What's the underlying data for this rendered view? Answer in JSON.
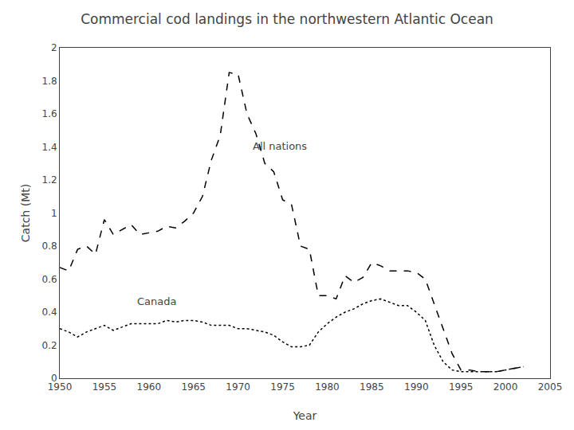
{
  "chart_data": {
    "type": "line",
    "title": "Commercial cod landings in the northwestern Atlantic Ocean",
    "x_label": "Year",
    "y_label": "Catch (Mt)",
    "x": [
      1950,
      1951,
      1952,
      1953,
      1954,
      1955,
      1956,
      1957,
      1958,
      1959,
      1960,
      1961,
      1962,
      1963,
      1964,
      1965,
      1966,
      1967,
      1968,
      1969,
      1970,
      1971,
      1972,
      1973,
      1974,
      1975,
      1976,
      1977,
      1978,
      1979,
      1980,
      1981,
      1982,
      1983,
      1984,
      1985,
      1986,
      1987,
      1988,
      1989,
      1990,
      1991,
      1992,
      1993,
      1994,
      1995,
      1996,
      1997,
      1998,
      1999,
      2000,
      2001,
      2002
    ],
    "series": [
      {
        "color": "#000000",
        "line_style": "dashed",
        "values": [
          0.67,
          0.65,
          0.78,
          0.8,
          0.75,
          0.96,
          0.87,
          0.9,
          0.93,
          0.87,
          0.88,
          0.89,
          0.92,
          0.91,
          0.95,
          1.0,
          1.1,
          1.32,
          1.47,
          1.85,
          1.84,
          1.6,
          1.48,
          1.3,
          1.25,
          1.08,
          1.05,
          0.8,
          0.78,
          0.5,
          0.5,
          0.48,
          0.62,
          0.58,
          0.61,
          0.7,
          0.68,
          0.65,
          0.65,
          0.65,
          0.64,
          0.6,
          0.45,
          0.3,
          0.15,
          0.05,
          0.05,
          0.04,
          0.04,
          0.04,
          0.05,
          0.06,
          0.07
        ]
      },
      {
        "color": "#000000",
        "line_style": "dotted",
        "values": [
          0.3,
          0.28,
          0.25,
          0.28,
          0.3,
          0.32,
          0.29,
          0.31,
          0.33,
          0.33,
          0.33,
          0.33,
          0.35,
          0.34,
          0.35,
          0.35,
          0.34,
          0.32,
          0.32,
          0.32,
          0.3,
          0.3,
          0.29,
          0.28,
          0.26,
          0.22,
          0.19,
          0.19,
          0.2,
          0.28,
          0.33,
          0.37,
          0.4,
          0.42,
          0.45,
          0.47,
          0.48,
          0.46,
          0.44,
          0.44,
          0.4,
          0.35,
          0.2,
          0.1,
          0.05,
          0.04,
          0.04,
          0.04,
          0.04,
          0.04,
          0.05,
          0.06,
          0.07
        ]
      }
    ],
    "annotations": [
      {
        "text": "All nations",
        "x": 1971.5,
        "y": 1.36
      },
      {
        "text": "Canada",
        "x": 1958.5,
        "y": 0.42
      }
    ],
    "xlim": [
      1950,
      2005
    ],
    "ylim": [
      0,
      2.0
    ],
    "xticks": [
      1950,
      1955,
      1960,
      1965,
      1970,
      1975,
      1980,
      1985,
      1990,
      1995,
      2000,
      2005
    ],
    "yticks": [
      0,
      0.2,
      0.4,
      0.6,
      0.8,
      1,
      1.2,
      1.4,
      1.6,
      1.8,
      2
    ],
    "grid": false
  }
}
